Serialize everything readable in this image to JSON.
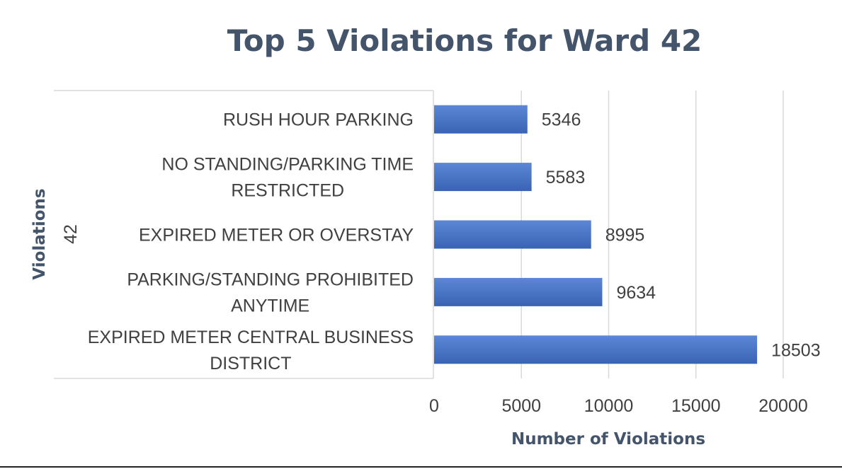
{
  "chart_data": {
    "type": "bar",
    "orientation": "horizontal",
    "title": "Top 5 Violations for Ward 42",
    "xlabel": "Number of Violations",
    "ylabel": "Violations",
    "group_label": "42",
    "categories": [
      "RUSH HOUR PARKING",
      "NO STANDING/PARKING TIME RESTRICTED",
      "EXPIRED METER OR OVERSTAY",
      "PARKING/STANDING PROHIBITED ANYTIME",
      "EXPIRED METER CENTRAL BUSINESS DISTRICT"
    ],
    "category_lines": [
      [
        "RUSH HOUR PARKING"
      ],
      [
        "NO STANDING/PARKING TIME",
        "RESTRICTED"
      ],
      [
        "EXPIRED METER OR OVERSTAY"
      ],
      [
        "PARKING/STANDING PROHIBITED",
        "ANYTIME"
      ],
      [
        "EXPIRED METER CENTRAL BUSINESS",
        "DISTRICT"
      ]
    ],
    "values": [
      5346,
      5583,
      8995,
      9634,
      18503
    ],
    "data_labels": [
      "5346",
      "5583",
      "8995",
      "9634",
      "18503"
    ],
    "xticks": [
      0,
      5000,
      10000,
      15000,
      20000
    ],
    "xtick_labels": [
      "0",
      "5000",
      "10000",
      "15000",
      "20000"
    ],
    "xlim": [
      0,
      20000
    ],
    "grid": true,
    "legend": "none",
    "colors": {
      "bar": "#4472c4",
      "bar_light": "#5b87d6",
      "bar_dark": "#3a64b3",
      "title": "#44546a",
      "text": "#404040",
      "grid": "#d9d9d9"
    }
  }
}
